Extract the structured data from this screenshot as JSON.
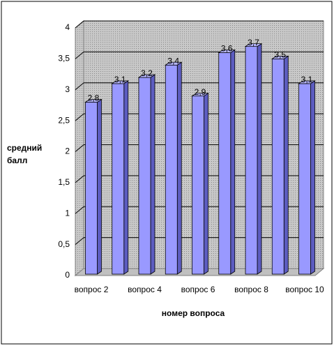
{
  "chart_data": {
    "type": "bar3d",
    "y_label": "средний балл",
    "x_label": "номер вопроса",
    "categories": [
      "вопрос 2",
      null,
      "вопрос 4",
      null,
      "вопрос 6",
      null,
      "вопрос 8",
      null,
      "вопрос 10"
    ],
    "values": [
      2.8,
      3.1,
      3.2,
      3.4,
      2.9,
      3.6,
      3.7,
      3.5,
      3.1
    ],
    "value_labels": [
      "2,8",
      "3,1",
      "3,2",
      "3,4",
      "2,9",
      "3,6",
      "3,7",
      "3,5",
      "3,1"
    ],
    "color": "#9999ff",
    "ylim": [
      0,
      4
    ],
    "yticks": [
      0,
      {
        "value": 0.5,
        "label": "0,5"
      },
      1,
      {
        "value": 1.5,
        "label": "1,5"
      },
      2,
      {
        "value": 2.5,
        "label": "2,5"
      },
      3,
      {
        "value": 3.5,
        "label": "3,5"
      },
      4
    ],
    "grid": true
  }
}
